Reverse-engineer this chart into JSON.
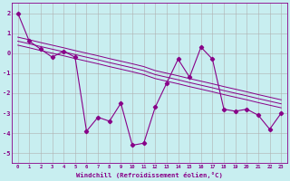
{
  "xlabel": "Windchill (Refroidissement éolien,°C)",
  "background_color": "#c8eef0",
  "grid_color": "#b0b0b0",
  "line_color": "#880088",
  "x_values": [
    0,
    1,
    2,
    3,
    4,
    5,
    6,
    7,
    8,
    9,
    10,
    11,
    12,
    13,
    14,
    15,
    16,
    17,
    18,
    19,
    20,
    21,
    22,
    23
  ],
  "y_main": [
    2.0,
    0.6,
    0.2,
    -0.2,
    0.1,
    -0.2,
    -3.9,
    -3.2,
    -3.4,
    -2.5,
    -4.6,
    -4.5,
    -2.7,
    -1.5,
    -0.3,
    -1.2,
    0.3,
    -0.3,
    -2.8,
    -2.9,
    -2.8,
    -3.1,
    -3.8,
    -3.0
  ],
  "y_line1": [
    0.8,
    0.67,
    0.53,
    0.4,
    0.27,
    0.13,
    0.0,
    -0.13,
    -0.27,
    -0.4,
    -0.53,
    -0.67,
    -0.87,
    -1.0,
    -1.13,
    -1.27,
    -1.4,
    -1.53,
    -1.67,
    -1.8,
    -1.93,
    -2.07,
    -2.2,
    -2.33
  ],
  "y_line2": [
    0.6,
    0.47,
    0.33,
    0.2,
    0.07,
    -0.07,
    -0.2,
    -0.33,
    -0.47,
    -0.6,
    -0.73,
    -0.87,
    -1.07,
    -1.2,
    -1.33,
    -1.47,
    -1.6,
    -1.73,
    -1.87,
    -2.0,
    -2.13,
    -2.27,
    -2.4,
    -2.53
  ],
  "y_line3": [
    0.4,
    0.27,
    0.13,
    0.0,
    -0.13,
    -0.27,
    -0.4,
    -0.53,
    -0.67,
    -0.8,
    -0.93,
    -1.07,
    -1.27,
    -1.4,
    -1.53,
    -1.67,
    -1.8,
    -1.93,
    -2.07,
    -2.2,
    -2.33,
    -2.47,
    -2.6,
    -2.73
  ],
  "ylim": [
    -5.5,
    2.5
  ],
  "xlim": [
    -0.5,
    23.5
  ],
  "yticks": [
    -5,
    -4,
    -3,
    -2,
    -1,
    0,
    1,
    2
  ],
  "xticks": [
    0,
    1,
    2,
    3,
    4,
    5,
    6,
    7,
    8,
    9,
    10,
    11,
    12,
    13,
    14,
    15,
    16,
    17,
    18,
    19,
    20,
    21,
    22,
    23
  ]
}
